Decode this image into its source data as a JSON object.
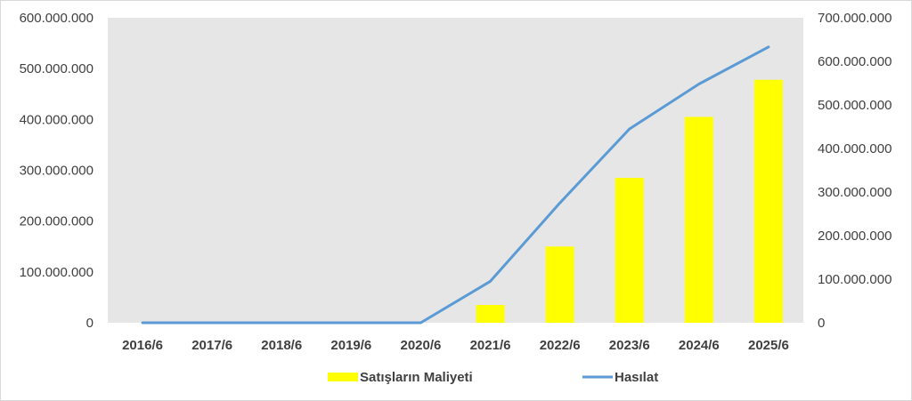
{
  "chart_data": {
    "type": "bar",
    "categories": [
      "2016/6",
      "2017/6",
      "2018/6",
      "2019/6",
      "2020/6",
      "2021/6",
      "2022/6",
      "2023/6",
      "2024/6",
      "2025/6"
    ],
    "series": [
      {
        "name": "Satışların Maliyeti",
        "type": "bar",
        "axis": "left",
        "color": "#ffff00",
        "values": [
          0,
          0,
          0,
          0,
          0,
          35000000,
          150000000,
          285000000,
          405000000,
          478000000
        ]
      },
      {
        "name": "Hasılat",
        "type": "line",
        "axis": "right",
        "color": "#5b9bd5",
        "values": [
          0,
          0,
          0,
          0,
          0,
          95000000,
          275000000,
          445000000,
          548000000,
          633000000
        ]
      }
    ],
    "y_left": {
      "ylim": [
        0,
        600000000
      ],
      "ticks": [
        "0",
        "100.000.000",
        "200.000.000",
        "300.000.000",
        "400.000.000",
        "500.000.000",
        "600.000.000"
      ]
    },
    "y_right": {
      "ylim": [
        0,
        700000000
      ],
      "ticks": [
        "0",
        "100.000.000",
        "200.000.000",
        "300.000.000",
        "400.000.000",
        "500.000.000",
        "600.000.000",
        "700.000.000"
      ]
    },
    "plot_background": "#e6e6e6",
    "legend": "bottom",
    "grid": false
  }
}
